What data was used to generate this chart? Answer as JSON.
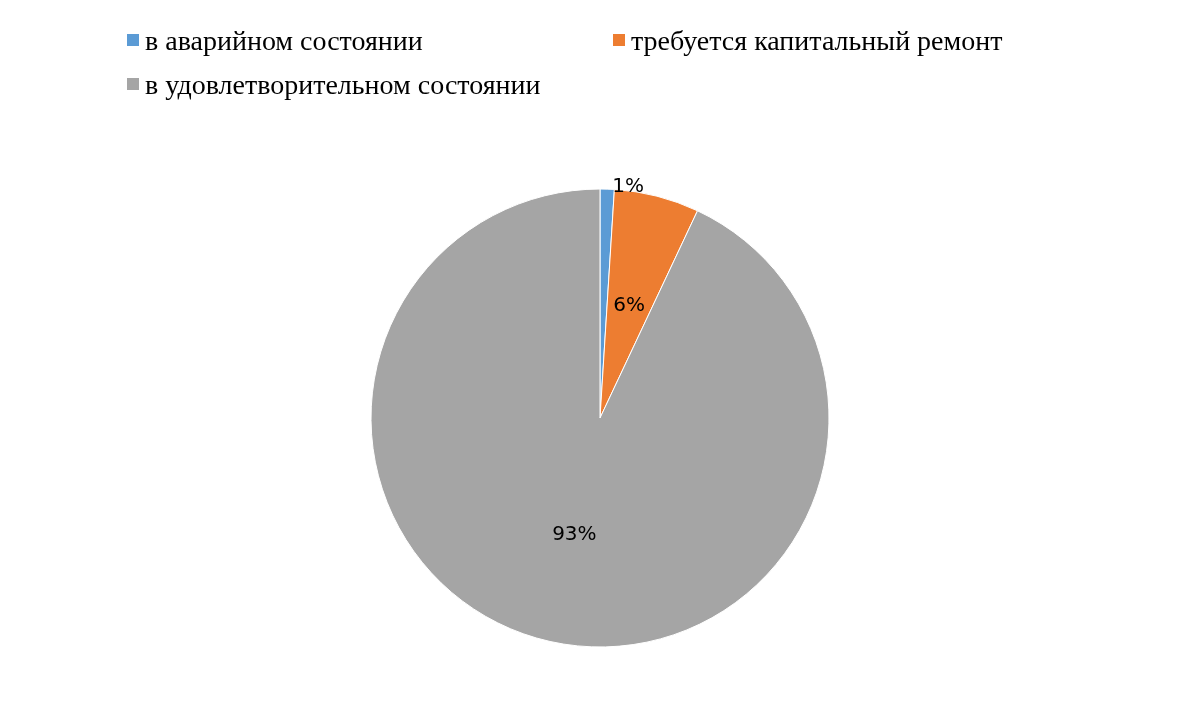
{
  "chart_data": {
    "type": "pie",
    "categories": [
      "в аварийном состоянии",
      "требуется капитальный ремонт",
      "в удовлетворительном состоянии"
    ],
    "values": [
      1,
      6,
      93
    ],
    "colors": [
      "#5b9bd5",
      "#ed7d31",
      "#a5a5a5"
    ],
    "value_labels": [
      "1%",
      "6%",
      "93%"
    ],
    "legend": "top left"
  }
}
